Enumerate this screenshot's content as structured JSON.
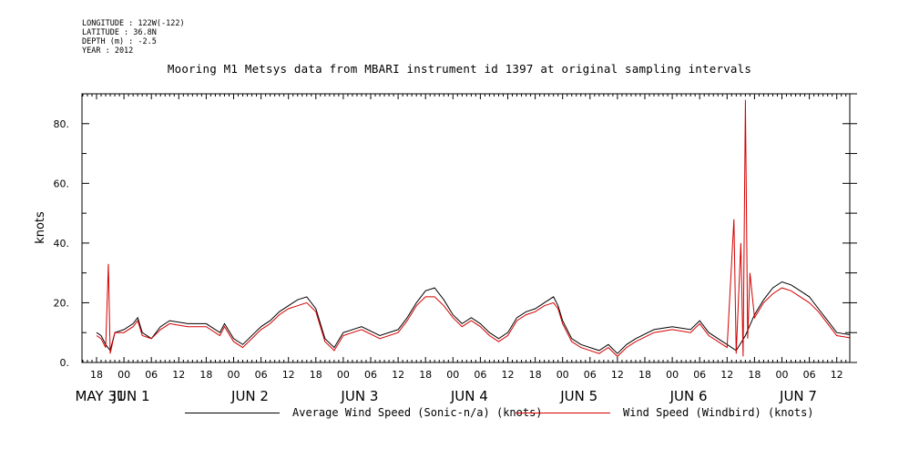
{
  "meta": {
    "longitude": "LONGITUDE : 122W(-122)",
    "latitude": "LATITUDE : 36.8N",
    "depth": "DEPTH (m) : -2.5",
    "year": "YEAR : 2012"
  },
  "chart_data": {
    "type": "line",
    "title": "Mooring M1 Metsys data from MBARI instrument id 1397 at original sampling intervals",
    "ylabel": "knots",
    "xlabel": "",
    "ylim": [
      0,
      90
    ],
    "yticks": [
      0,
      20,
      40,
      60,
      80
    ],
    "ytick_labels": [
      "0.",
      "20.",
      "40.",
      "60.",
      "80."
    ],
    "xlim_hours": [
      0,
      156
    ],
    "hour_ticks": [
      "18",
      "00",
      "06",
      "12",
      "18",
      "00",
      "06",
      "12",
      "18",
      "00",
      "06",
      "12",
      "18",
      "00",
      "06",
      "12",
      "18",
      "00",
      "06",
      "12",
      "18",
      "00",
      "06",
      "12",
      "18",
      "00",
      "06",
      "12"
    ],
    "date_labels": [
      "MAY 31",
      "JUN  1",
      "JUN  2",
      "JUN  3",
      "JUN  4",
      "JUN  5",
      "JUN  6",
      "JUN  7"
    ],
    "grid": false,
    "legend_position": "bottom",
    "series": [
      {
        "name": "Average Wind Speed (Sonic-n/a) (knots)",
        "color": "#000000",
        "points": [
          [
            0,
            10
          ],
          [
            1,
            9
          ],
          [
            2,
            6
          ],
          [
            3,
            4
          ],
          [
            4,
            10
          ],
          [
            6,
            11
          ],
          [
            8,
            13
          ],
          [
            9,
            15
          ],
          [
            10,
            10
          ],
          [
            12,
            8
          ],
          [
            14,
            12
          ],
          [
            16,
            14
          ],
          [
            20,
            13
          ],
          [
            24,
            13
          ],
          [
            27,
            10
          ],
          [
            28,
            13
          ],
          [
            30,
            8
          ],
          [
            32,
            6
          ],
          [
            36,
            12
          ],
          [
            38,
            14
          ],
          [
            40,
            17
          ],
          [
            42,
            19
          ],
          [
            44,
            21
          ],
          [
            46,
            22
          ],
          [
            48,
            18
          ],
          [
            50,
            8
          ],
          [
            52,
            5
          ],
          [
            54,
            10
          ],
          [
            58,
            12
          ],
          [
            62,
            9
          ],
          [
            66,
            11
          ],
          [
            68,
            15
          ],
          [
            70,
            20
          ],
          [
            72,
            24
          ],
          [
            74,
            25
          ],
          [
            76,
            21
          ],
          [
            78,
            16
          ],
          [
            80,
            13
          ],
          [
            82,
            15
          ],
          [
            84,
            13
          ],
          [
            86,
            10
          ],
          [
            88,
            8
          ],
          [
            90,
            10
          ],
          [
            92,
            15
          ],
          [
            94,
            17
          ],
          [
            96,
            18
          ],
          [
            98,
            20
          ],
          [
            100,
            22
          ],
          [
            101,
            19
          ],
          [
            102,
            14
          ],
          [
            104,
            8
          ],
          [
            106,
            6
          ],
          [
            110,
            4
          ],
          [
            112,
            6
          ],
          [
            114,
            3
          ],
          [
            116,
            6
          ],
          [
            118,
            8
          ],
          [
            122,
            11
          ],
          [
            126,
            12
          ],
          [
            130,
            11
          ],
          [
            132,
            14
          ],
          [
            134,
            10
          ],
          [
            136,
            8
          ],
          [
            138,
            6
          ],
          [
            140,
            4
          ],
          [
            142,
            9
          ],
          [
            144,
            16
          ],
          [
            146,
            21
          ],
          [
            148,
            25
          ],
          [
            150,
            27
          ],
          [
            152,
            26
          ],
          [
            154,
            24
          ],
          [
            156,
            22
          ],
          [
            158,
            18
          ],
          [
            160,
            14
          ],
          [
            162,
            10
          ],
          [
            166,
            9
          ],
          [
            168,
            6
          ],
          [
            169,
            3
          ],
          [
            171,
            8
          ],
          [
            174,
            15
          ],
          [
            177,
            22
          ],
          [
            180,
            26
          ],
          [
            182,
            28
          ],
          [
            184,
            28
          ],
          [
            186,
            26
          ],
          [
            188,
            22
          ],
          [
            190,
            20
          ],
          [
            192,
            18
          ],
          [
            194,
            15
          ],
          [
            196,
            12
          ],
          [
            198,
            10
          ],
          [
            199,
            8
          ],
          [
            201,
            9
          ],
          [
            203,
            12
          ],
          [
            204,
            13
          ]
        ]
      },
      {
        "name": "Wind Speed (Windbird) (knots)",
        "color": "#d40000",
        "points": [
          [
            0,
            9
          ],
          [
            1,
            8
          ],
          [
            2,
            5
          ],
          [
            2.6,
            33
          ],
          [
            3,
            3
          ],
          [
            4,
            10
          ],
          [
            6,
            10
          ],
          [
            8,
            12
          ],
          [
            9,
            14
          ],
          [
            10,
            9
          ],
          [
            12,
            8
          ],
          [
            14,
            11
          ],
          [
            16,
            13
          ],
          [
            20,
            12
          ],
          [
            24,
            12
          ],
          [
            27,
            9
          ],
          [
            28,
            12
          ],
          [
            30,
            7
          ],
          [
            32,
            5
          ],
          [
            36,
            11
          ],
          [
            38,
            13
          ],
          [
            40,
            16
          ],
          [
            42,
            18
          ],
          [
            44,
            19
          ],
          [
            46,
            20
          ],
          [
            48,
            17
          ],
          [
            50,
            7
          ],
          [
            52,
            4
          ],
          [
            54,
            9
          ],
          [
            58,
            11
          ],
          [
            62,
            8
          ],
          [
            66,
            10
          ],
          [
            68,
            14
          ],
          [
            70,
            19
          ],
          [
            72,
            22
          ],
          [
            74,
            22
          ],
          [
            76,
            19
          ],
          [
            78,
            15
          ],
          [
            80,
            12
          ],
          [
            82,
            14
          ],
          [
            84,
            12
          ],
          [
            86,
            9
          ],
          [
            88,
            7
          ],
          [
            90,
            9
          ],
          [
            92,
            14
          ],
          [
            94,
            16
          ],
          [
            96,
            17
          ],
          [
            98,
            19
          ],
          [
            100,
            20
          ],
          [
            101,
            18
          ],
          [
            102,
            13
          ],
          [
            104,
            7
          ],
          [
            106,
            5
          ],
          [
            110,
            3
          ],
          [
            112,
            5
          ],
          [
            114,
            2
          ],
          [
            116,
            5
          ],
          [
            118,
            7
          ],
          [
            122,
            10
          ],
          [
            126,
            11
          ],
          [
            130,
            10
          ],
          [
            132,
            13
          ],
          [
            134,
            9
          ],
          [
            136,
            7
          ],
          [
            138,
            5
          ],
          [
            139.5,
            48
          ],
          [
            140,
            3
          ],
          [
            141,
            40
          ],
          [
            141.5,
            2
          ],
          [
            142,
            88
          ],
          [
            142.5,
            8
          ],
          [
            143,
            30
          ],
          [
            144,
            15
          ],
          [
            146,
            20
          ],
          [
            148,
            23
          ],
          [
            150,
            25
          ],
          [
            152,
            24
          ],
          [
            154,
            22
          ],
          [
            156,
            20
          ],
          [
            158,
            17
          ],
          [
            160,
            13
          ],
          [
            162,
            9
          ],
          [
            166,
            8
          ],
          [
            168,
            5
          ],
          [
            169,
            2
          ],
          [
            171,
            7
          ],
          [
            174,
            14
          ],
          [
            177,
            21
          ],
          [
            180,
            24
          ],
          [
            182,
            25
          ],
          [
            184,
            25
          ],
          [
            186,
            23
          ],
          [
            188,
            20
          ],
          [
            190,
            19
          ],
          [
            192,
            17
          ],
          [
            194,
            14
          ],
          [
            196,
            11
          ],
          [
            198,
            9
          ],
          [
            199,
            7
          ],
          [
            201,
            8
          ],
          [
            203,
            11
          ],
          [
            204,
            12
          ]
        ]
      }
    ]
  },
  "legend": {
    "avg_label": "Average Wind Speed (Sonic-n/a) (knots)",
    "windbird_label": "Wind Speed (Windbird) (knots)"
  }
}
